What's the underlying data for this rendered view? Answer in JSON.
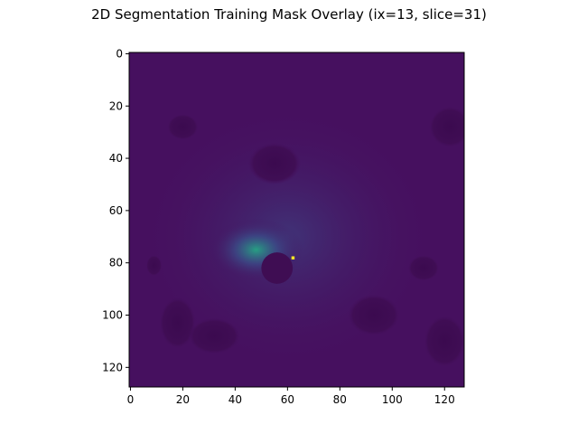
{
  "chart_data": {
    "type": "heatmap",
    "title": "2D Segmentation Training Mask Overlay (ix=13, slice=31)",
    "xlabel": "",
    "ylabel": "",
    "xlim": [
      -0.5,
      127.5
    ],
    "ylim": [
      127.5,
      -0.5
    ],
    "x_ticks": [
      0,
      20,
      40,
      60,
      80,
      100,
      120
    ],
    "y_ticks": [
      0,
      20,
      40,
      60,
      80,
      100,
      120
    ],
    "x_tick_labels": [
      "0",
      "20",
      "40",
      "60",
      "80",
      "100",
      "120"
    ],
    "y_tick_labels": [
      "0",
      "20",
      "40",
      "60",
      "80",
      "100",
      "120"
    ],
    "grid": false,
    "colormap": "viridis",
    "image_shape": [
      128,
      128
    ],
    "colors": {
      "background": "#46105f",
      "dark_structure": "#3f0d53",
      "mid_signal": "#3a4f8a",
      "bright_signal": "#25a584",
      "peak": "#fde725"
    },
    "regions": [
      {
        "label": "hyperintense ring",
        "center": [
          48,
          75
        ],
        "radius": 12,
        "intensity": 0.55
      },
      {
        "label": "dark lumen",
        "center": [
          56,
          82
        ],
        "radius": 6,
        "intensity": 0.0
      },
      {
        "label": "mask peak",
        "center": [
          62,
          78
        ],
        "radius": 1,
        "intensity": 1.0
      }
    ]
  }
}
